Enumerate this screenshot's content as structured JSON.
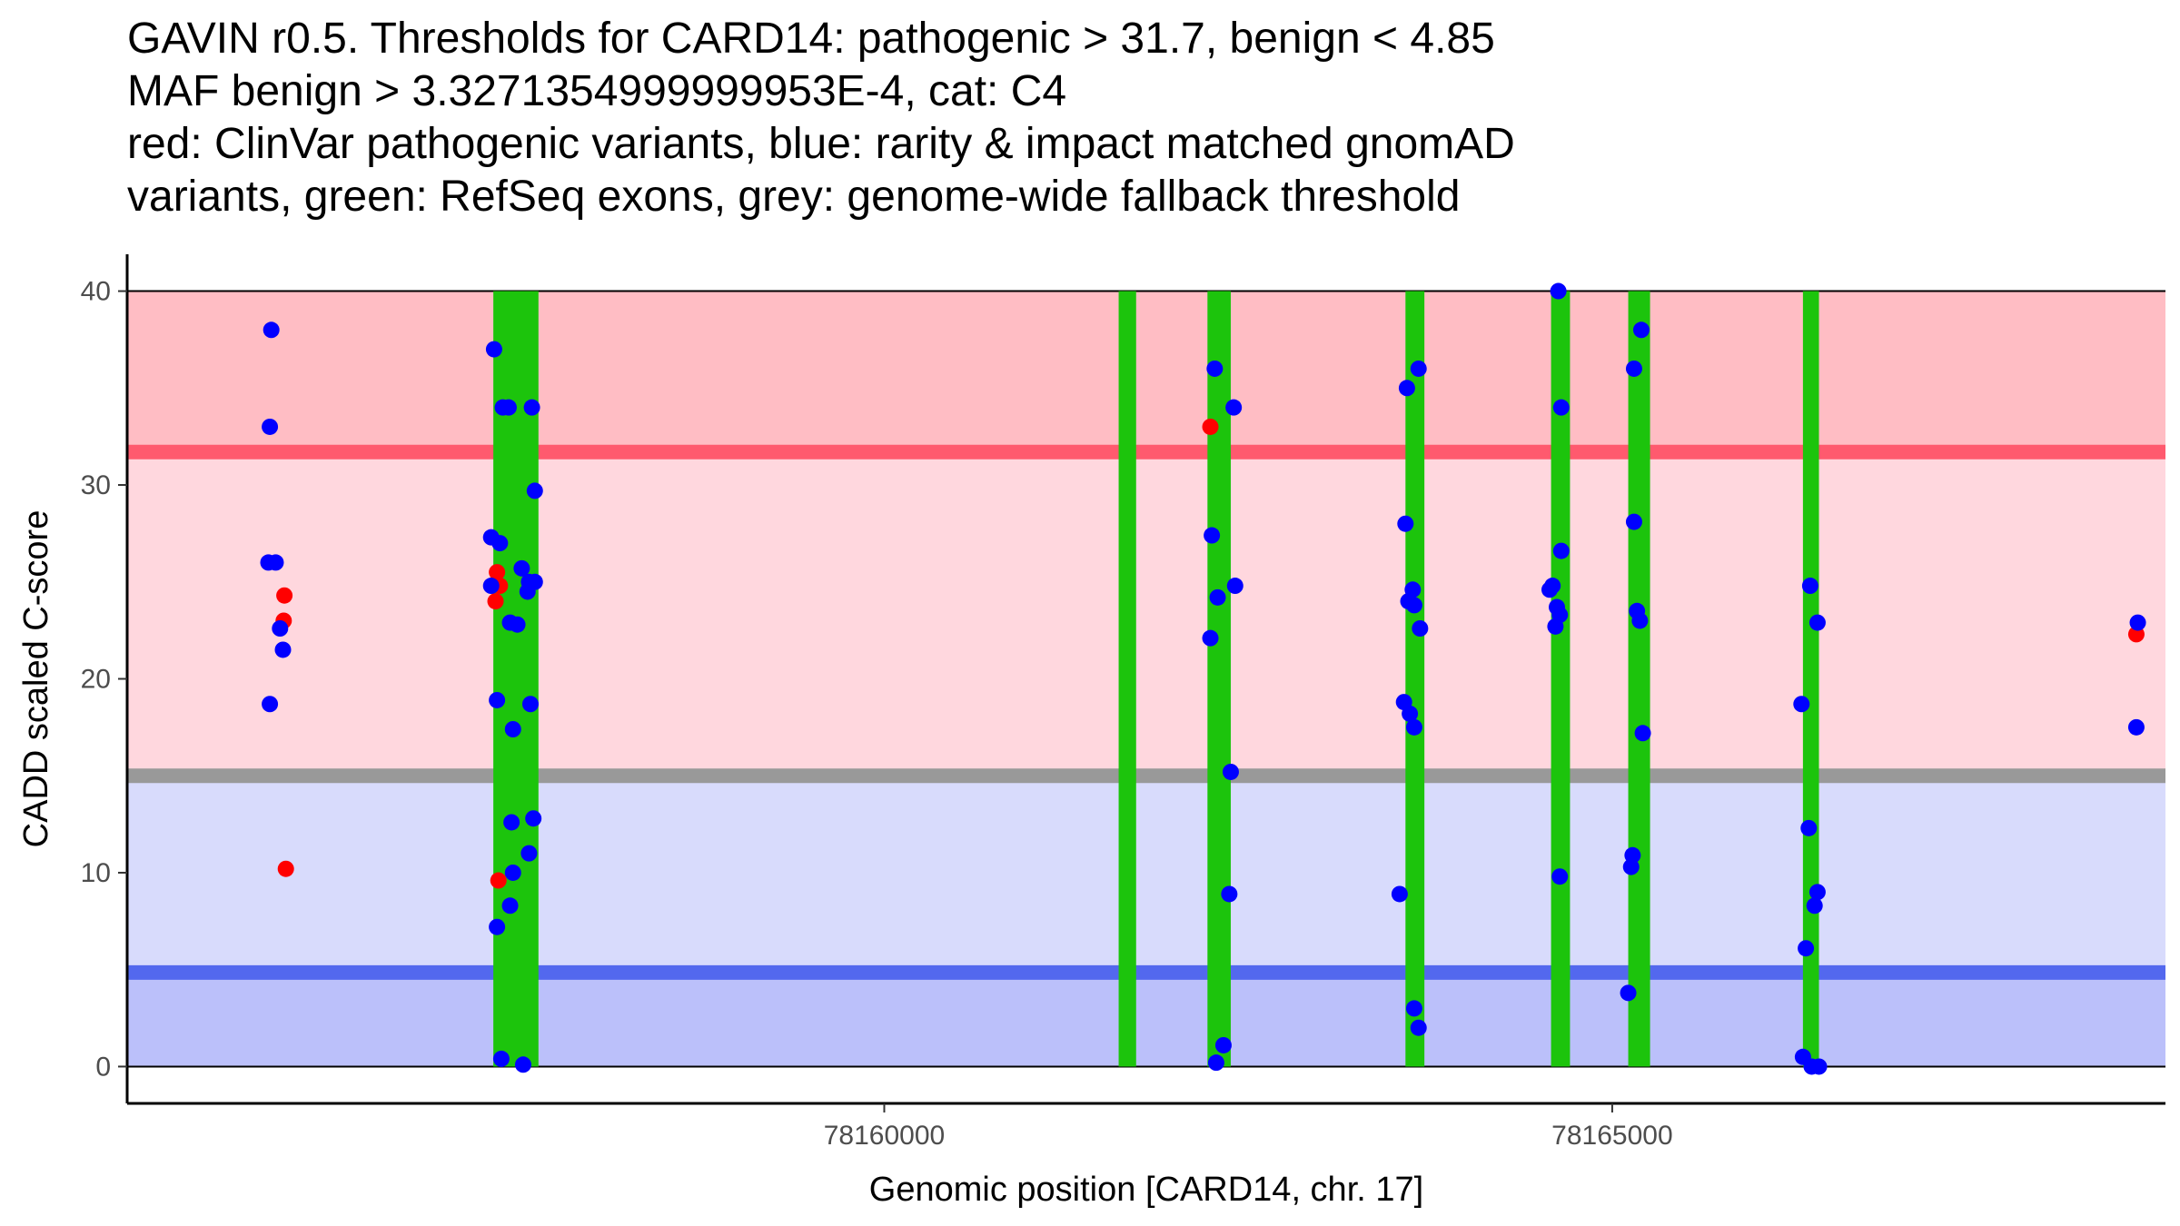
{
  "chart_data": {
    "type": "scatter",
    "title_lines": [
      "GAVIN r0.5. Thresholds for CARD14: pathogenic > 31.7, benign < 4.85",
      "MAF benign > 3.3271354999999953E-4, cat: C4",
      "red: ClinVar pathogenic variants, blue: rarity & impact matched gnomAD",
      "variants, green: RefSeq exons, grey: genome-wide fallback threshold"
    ],
    "xlabel": "Genomic position [CARD14, chr. 17]",
    "ylabel": "CADD scaled C-score",
    "xlim": [
      78154800,
      78168800
    ],
    "ylim": [
      -1.9,
      41.9
    ],
    "x_ticks": [
      78160000,
      78165000
    ],
    "x_tick_labels": [
      "78160000",
      "78165000"
    ],
    "y_ticks": [
      0,
      10,
      20,
      30,
      40
    ],
    "y_tick_labels": [
      "0",
      "10",
      "20",
      "30",
      "40"
    ],
    "grid": false,
    "thresholds": {
      "pathogenic": 31.7,
      "benign": 4.85,
      "genome_wide_fallback": 15.0
    },
    "colors": {
      "pathogenic_region": "#ffbdc4",
      "vus_upper_region": "#ffd7de",
      "vus_lower_region": "#d8dbfc",
      "benign_region": "#bbc0fa",
      "pathogenic_line": "#ff5a6e",
      "benign_line": "#5368ee",
      "fallback_line": "#999999",
      "exon": "#1cc40c",
      "clinvar": "#ff0000",
      "gnomad": "#0000ff"
    },
    "exons": [
      [
        78157315,
        78157625
      ],
      [
        78161610,
        78161730
      ],
      [
        78162220,
        78162380
      ],
      [
        78163580,
        78163710
      ],
      [
        78164580,
        78164710
      ],
      [
        78165110,
        78165260
      ],
      [
        78166310,
        78166420
      ]
    ],
    "series": [
      {
        "name": "ClinVar pathogenic",
        "color": "#ff0000",
        "points": [
          [
            78155880,
            24.3
          ],
          [
            78155875,
            23.0
          ],
          [
            78155890,
            10.2
          ],
          [
            78157340,
            25.5
          ],
          [
            78157360,
            24.8
          ],
          [
            78157330,
            24.0
          ],
          [
            78157350,
            9.6
          ],
          [
            78162240,
            33.0
          ],
          [
            78168600,
            22.3
          ]
        ]
      },
      {
        "name": "gnomAD matched",
        "color": "#0000ff",
        "points": [
          [
            78155790,
            38.0
          ],
          [
            78155780,
            33.0
          ],
          [
            78155770,
            26.0
          ],
          [
            78155820,
            26.0
          ],
          [
            78155850,
            22.6
          ],
          [
            78155870,
            21.5
          ],
          [
            78155780,
            18.7
          ],
          [
            78157320,
            37.0
          ],
          [
            78157300,
            27.3
          ],
          [
            78157360,
            27.0
          ],
          [
            78157380,
            34.0
          ],
          [
            78157420,
            34.0
          ],
          [
            78157580,
            34.0
          ],
          [
            78157600,
            29.7
          ],
          [
            78157300,
            24.8
          ],
          [
            78157510,
            25.7
          ],
          [
            78157560,
            25.0
          ],
          [
            78157550,
            24.5
          ],
          [
            78157600,
            25.0
          ],
          [
            78157430,
            22.9
          ],
          [
            78157480,
            22.8
          ],
          [
            78157340,
            18.9
          ],
          [
            78157570,
            18.7
          ],
          [
            78157450,
            17.4
          ],
          [
            78157440,
            12.6
          ],
          [
            78157590,
            12.8
          ],
          [
            78157560,
            11.0
          ],
          [
            78157450,
            10.0
          ],
          [
            78157430,
            8.3
          ],
          [
            78157340,
            7.2
          ],
          [
            78157370,
            0.4
          ],
          [
            78157520,
            0.1
          ],
          [
            78162270,
            36.0
          ],
          [
            78162400,
            34.0
          ],
          [
            78162250,
            27.4
          ],
          [
            78162290,
            24.2
          ],
          [
            78162410,
            24.8
          ],
          [
            78162240,
            22.1
          ],
          [
            78162380,
            15.2
          ],
          [
            78162370,
            8.9
          ],
          [
            78162330,
            1.1
          ],
          [
            78162280,
            0.2
          ],
          [
            78163590,
            35.0
          ],
          [
            78163670,
            36.0
          ],
          [
            78163580,
            28.0
          ],
          [
            78163600,
            24.0
          ],
          [
            78163630,
            24.6
          ],
          [
            78163640,
            23.8
          ],
          [
            78163680,
            22.6
          ],
          [
            78163570,
            18.8
          ],
          [
            78163610,
            18.2
          ],
          [
            78163640,
            17.5
          ],
          [
            78163540,
            8.9
          ],
          [
            78163640,
            3.0
          ],
          [
            78163670,
            2.0
          ],
          [
            78164630,
            40.0
          ],
          [
            78164650,
            34.0
          ],
          [
            78164570,
            24.6
          ],
          [
            78164590,
            24.8
          ],
          [
            78164620,
            23.7
          ],
          [
            78164640,
            23.3
          ],
          [
            78164610,
            22.7
          ],
          [
            78164650,
            26.6
          ],
          [
            78164640,
            9.8
          ],
          [
            78165200,
            38.0
          ],
          [
            78165150,
            36.0
          ],
          [
            78165150,
            28.1
          ],
          [
            78165170,
            23.5
          ],
          [
            78165190,
            23.0
          ],
          [
            78165210,
            17.2
          ],
          [
            78165140,
            10.9
          ],
          [
            78165130,
            10.3
          ],
          [
            78165110,
            3.8
          ],
          [
            78166360,
            24.8
          ],
          [
            78166410,
            22.9
          ],
          [
            78166300,
            18.7
          ],
          [
            78166350,
            12.3
          ],
          [
            78166410,
            9.0
          ],
          [
            78166390,
            8.3
          ],
          [
            78166330,
            6.1
          ],
          [
            78166310,
            0.5
          ],
          [
            78166370,
            0.0
          ],
          [
            78166420,
            0.0
          ],
          [
            78168610,
            22.9
          ],
          [
            78168600,
            17.5
          ]
        ]
      }
    ]
  }
}
